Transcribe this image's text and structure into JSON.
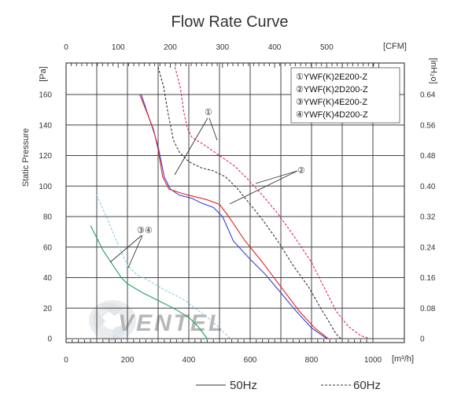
{
  "chart_data": {
    "type": "line",
    "title": "Flow Rate Curve",
    "xlabel": "[m³/h]",
    "ylabel": "Static Pressure",
    "y_unit": "[Pa]",
    "x2_unit": "[CFM]",
    "y2_unit": "[inH₂o]",
    "xlim": [
      0,
      1000
    ],
    "ylim": [
      0,
      170
    ],
    "grid": true,
    "x_ticks": [
      "0",
      "200",
      "400",
      "600",
      "800",
      "1000"
    ],
    "y_ticks": [
      "0",
      "20",
      "40",
      "60",
      "80",
      "100",
      "120",
      "140",
      "160"
    ],
    "x2_ticks": [
      "0",
      "100",
      "200",
      "300",
      "400",
      "500"
    ],
    "y2_ticks": [
      "0",
      "0.08",
      "0.16",
      "0.24",
      "0.32",
      "0.40",
      "0.48",
      "0.56",
      "0.64"
    ],
    "legend": {
      "placement": "top-right",
      "entries": [
        "①YWF(K)2E200-Z",
        "②YWF(K)2D200-Z",
        "③YWF(K)4E200-Z",
        "④YWF(K)4D200-Z"
      ]
    },
    "line_styles": [
      {
        "label": "50Hz",
        "dash": "solid"
      },
      {
        "label": "60Hz",
        "dash": "dashed"
      }
    ],
    "annotations": [
      {
        "label": "①",
        "x": 470,
        "y": 147
      },
      {
        "label": "②",
        "x": 770,
        "y": 111
      },
      {
        "label": "③④",
        "x": 265,
        "y": 70
      }
    ],
    "watermark": "VENTEL",
    "series": [
      {
        "color": "#3344cc",
        "dash": "solid",
        "points": [
          [
            245,
            160
          ],
          [
            265,
            148
          ],
          [
            285,
            136
          ],
          [
            300,
            126
          ],
          [
            320,
            106
          ],
          [
            340,
            98
          ],
          [
            370,
            94
          ],
          [
            410,
            92
          ],
          [
            440,
            89
          ],
          [
            480,
            86
          ],
          [
            510,
            80
          ],
          [
            545,
            64
          ],
          [
            600,
            52
          ],
          [
            650,
            42
          ],
          [
            700,
            30
          ],
          [
            750,
            18
          ],
          [
            800,
            7
          ],
          [
            850,
            0
          ]
        ]
      },
      {
        "color": "#e02020",
        "dash": "solid",
        "points": [
          [
            240,
            160
          ],
          [
            260,
            150
          ],
          [
            285,
            137
          ],
          [
            300,
            124
          ],
          [
            315,
            106
          ],
          [
            335,
            98
          ],
          [
            380,
            95
          ],
          [
            420,
            93
          ],
          [
            460,
            91
          ],
          [
            500,
            88
          ],
          [
            530,
            80
          ],
          [
            580,
            65
          ],
          [
            640,
            50
          ],
          [
            700,
            34
          ],
          [
            760,
            18
          ],
          [
            810,
            7
          ],
          [
            855,
            0
          ]
        ]
      },
      {
        "color": "#333333",
        "dash": "dashed",
        "points": [
          [
            300,
            178
          ],
          [
            318,
            165
          ],
          [
            332,
            148
          ],
          [
            350,
            130
          ],
          [
            370,
            122
          ],
          [
            400,
            116
          ],
          [
            440,
            112
          ],
          [
            480,
            110
          ],
          [
            520,
            106
          ],
          [
            560,
            98
          ],
          [
            600,
            88
          ],
          [
            640,
            78
          ],
          [
            690,
            64
          ],
          [
            740,
            48
          ],
          [
            790,
            34
          ],
          [
            830,
            20
          ],
          [
            860,
            10
          ],
          [
            880,
            3
          ],
          [
            895,
            0
          ]
        ]
      },
      {
        "color": "#e0206e",
        "dash": "dashed",
        "points": [
          [
            355,
            178
          ],
          [
            372,
            165
          ],
          [
            384,
            148
          ],
          [
            395,
            138
          ],
          [
            410,
            132
          ],
          [
            450,
            127
          ],
          [
            500,
            120
          ],
          [
            550,
            113
          ],
          [
            590,
            105
          ],
          [
            640,
            94
          ],
          [
            690,
            82
          ],
          [
            740,
            68
          ],
          [
            800,
            50
          ],
          [
            840,
            34
          ],
          [
            880,
            18
          ],
          [
            920,
            8
          ],
          [
            960,
            2
          ],
          [
            990,
            0
          ]
        ]
      },
      {
        "color": "#20a060",
        "dash": "solid",
        "points": [
          [
            80,
            74
          ],
          [
            100,
            66
          ],
          [
            120,
            58
          ],
          [
            140,
            52
          ],
          [
            160,
            46
          ],
          [
            180,
            40
          ],
          [
            200,
            36
          ],
          [
            250,
            30
          ],
          [
            300,
            25
          ],
          [
            350,
            20
          ],
          [
            400,
            14
          ],
          [
            430,
            8
          ],
          [
            460,
            0
          ]
        ]
      },
      {
        "color": "#88cce0",
        "dash": "dashed",
        "points": [
          [
            100,
            94
          ],
          [
            120,
            85
          ],
          [
            140,
            76
          ],
          [
            160,
            66
          ],
          [
            180,
            57
          ],
          [
            200,
            48
          ],
          [
            230,
            42
          ],
          [
            270,
            38
          ],
          [
            320,
            32
          ],
          [
            380,
            26
          ],
          [
            420,
            20
          ],
          [
            460,
            14
          ],
          [
            500,
            7
          ],
          [
            535,
            0
          ]
        ]
      }
    ]
  }
}
